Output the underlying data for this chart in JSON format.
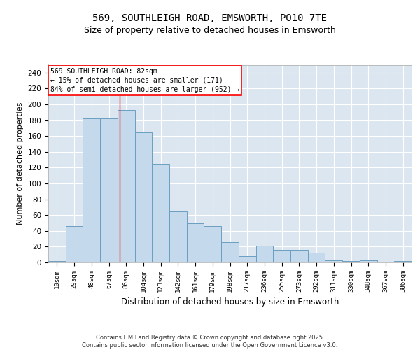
{
  "title_line1": "569, SOUTHLEIGH ROAD, EMSWORTH, PO10 7TE",
  "title_line2": "Size of property relative to detached houses in Emsworth",
  "xlabel": "Distribution of detached houses by size in Emsworth",
  "ylabel": "Number of detached properties",
  "categories": [
    "10sqm",
    "29sqm",
    "48sqm",
    "67sqm",
    "86sqm",
    "104sqm",
    "123sqm",
    "142sqm",
    "161sqm",
    "179sqm",
    "198sqm",
    "217sqm",
    "236sqm",
    "255sqm",
    "273sqm",
    "292sqm",
    "311sqm",
    "330sqm",
    "348sqm",
    "367sqm",
    "386sqm"
  ],
  "values": [
    2,
    46,
    182,
    182,
    193,
    165,
    125,
    65,
    50,
    46,
    26,
    8,
    21,
    16,
    16,
    12,
    3,
    2,
    3,
    1,
    2
  ],
  "bar_color": "#c5d9ec",
  "bar_edge_color": "#6a9ec0",
  "annotation_box_text": "569 SOUTHLEIGH ROAD: 82sqm\n← 15% of detached houses are smaller (171)\n84% of semi-detached houses are larger (952) →",
  "ylim": [
    0,
    250
  ],
  "yticks": [
    0,
    20,
    40,
    60,
    80,
    100,
    120,
    140,
    160,
    180,
    200,
    220,
    240
  ],
  "background_color": "#dce6f0",
  "footer_text": "Contains HM Land Registry data © Crown copyright and database right 2025.\nContains public sector information licensed under the Open Government Licence v3.0.",
  "title_fontsize1": 10,
  "title_fontsize2": 9,
  "red_line_bar_index": 3.62
}
